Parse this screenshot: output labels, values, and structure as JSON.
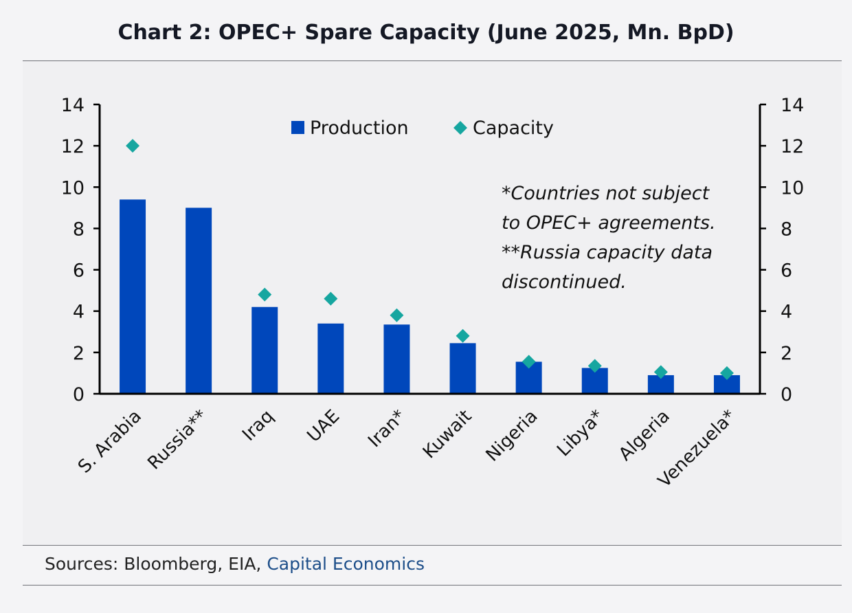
{
  "chart_data": {
    "type": "bar",
    "title": "Chart 2: OPEC+ Spare Capacity (June 2025, Mn. BpD)",
    "categories": [
      "S. Arabia",
      "Russia**",
      "Iraq",
      "UAE",
      "Iran*",
      "Kuwait",
      "Nigeria",
      "Libya*",
      "Algeria",
      "Venezuela*"
    ],
    "series": [
      {
        "name": "Production",
        "kind": "bar",
        "values": [
          9.4,
          9.0,
          4.2,
          3.4,
          3.35,
          2.45,
          1.55,
          1.25,
          0.9,
          0.9
        ]
      },
      {
        "name": "Capacity",
        "kind": "marker",
        "values": [
          12.0,
          null,
          4.8,
          4.6,
          3.8,
          2.8,
          1.55,
          1.35,
          1.05,
          1.0
        ]
      }
    ],
    "ylim": [
      0,
      14
    ],
    "yticks": [
      0,
      2,
      4,
      6,
      8,
      10,
      12,
      14
    ],
    "y2ticks": [
      0,
      2,
      4,
      6,
      8,
      10,
      12,
      14
    ],
    "grid": false,
    "legend_position": "top-center",
    "annotation": [
      "*Countries not subject",
      "to OPEC+ agreements.",
      "**Russia capacity data",
      "discontinued."
    ],
    "colors": {
      "Production": "#0047bb",
      "Capacity": "#16a6a0"
    }
  },
  "footer": {
    "sources_prefix": "Sources: Bloomberg, EIA, ",
    "sources_link": "Capital Economics"
  }
}
